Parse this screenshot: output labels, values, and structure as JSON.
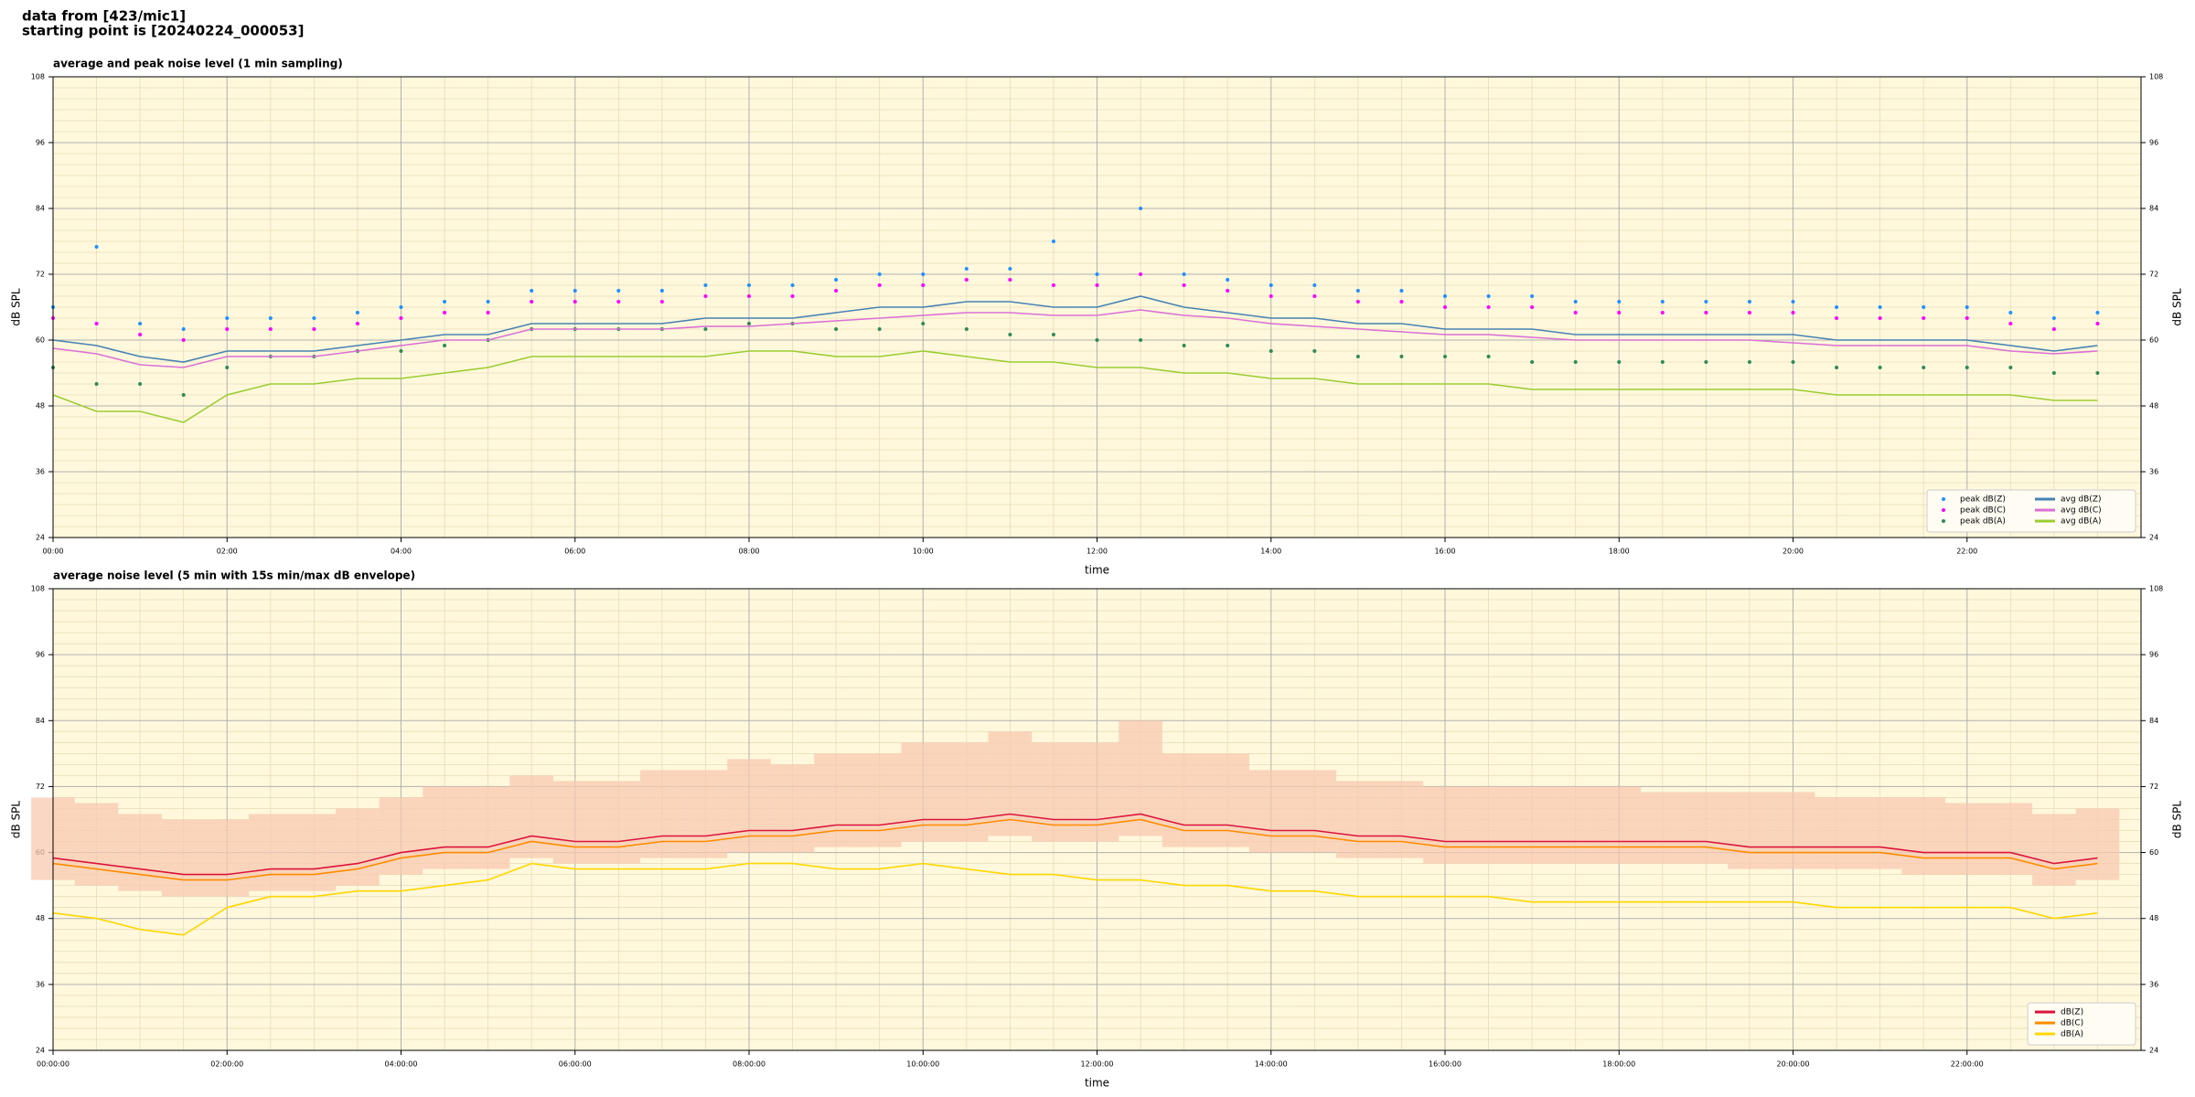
{
  "header": {
    "lines": [
      "data from [423/mic1]",
      "starting point is [20240224_000053]"
    ]
  },
  "chart_data": [
    {
      "type": "line",
      "title": "average and peak noise level (1 min sampling)",
      "xlabel": "time",
      "ylabel": "dB SPL",
      "xlim": [
        0,
        24
      ],
      "ylim": [
        24,
        108
      ],
      "yticks": [
        24,
        36,
        48,
        60,
        72,
        84,
        96,
        108
      ],
      "xticks": [
        {
          "value": 0,
          "label": "00:00"
        },
        {
          "value": 2,
          "label": "02:00"
        },
        {
          "value": 4,
          "label": "04:00"
        },
        {
          "value": 6,
          "label": "06:00"
        },
        {
          "value": 8,
          "label": "08:00"
        },
        {
          "value": 10,
          "label": "10:00"
        },
        {
          "value": 12,
          "label": "12:00"
        },
        {
          "value": 14,
          "label": "14:00"
        },
        {
          "value": 16,
          "label": "16:00"
        },
        {
          "value": 18,
          "label": "18:00"
        },
        {
          "value": 20,
          "label": "20:00"
        },
        {
          "value": 22,
          "label": "22:00"
        }
      ],
      "grid": true,
      "legend": "lower right",
      "background": "#fff8dc",
      "x": [
        0,
        0.5,
        1,
        1.5,
        2,
        2.5,
        3,
        3.5,
        4,
        4.5,
        5,
        5.5,
        6,
        6.5,
        7,
        7.5,
        8,
        8.5,
        9,
        9.5,
        10,
        10.5,
        11,
        11.5,
        12,
        12.5,
        13,
        13.5,
        14,
        14.5,
        15,
        15.5,
        16,
        16.5,
        17,
        17.5,
        18,
        18.5,
        19,
        19.5,
        20,
        20.5,
        21,
        21.5,
        22,
        22.5,
        23,
        23.5
      ],
      "series": [
        {
          "name": "peak dB(Z)",
          "style": "marker",
          "color": "#1e90ff",
          "values": [
            66,
            77,
            63,
            62,
            64,
            64,
            64,
            65,
            66,
            67,
            67,
            69,
            69,
            69,
            69,
            70,
            70,
            70,
            71,
            72,
            72,
            73,
            73,
            78,
            72,
            84,
            72,
            71,
            70,
            70,
            69,
            69,
            68,
            68,
            68,
            67,
            67,
            67,
            67,
            67,
            67,
            66,
            66,
            66,
            66,
            65,
            64,
            65
          ]
        },
        {
          "name": "peak dB(C)",
          "style": "marker",
          "color": "#ff00ff",
          "values": [
            64,
            63,
            61,
            60,
            62,
            62,
            62,
            63,
            64,
            65,
            65,
            67,
            67,
            67,
            67,
            68,
            68,
            68,
            69,
            70,
            70,
            71,
            71,
            70,
            70,
            72,
            70,
            69,
            68,
            68,
            67,
            67,
            66,
            66,
            66,
            65,
            65,
            65,
            65,
            65,
            65,
            64,
            64,
            64,
            64,
            63,
            62,
            63
          ]
        },
        {
          "name": "peak dB(A)",
          "style": "marker",
          "color": "#2e8b57",
          "values": [
            55,
            52,
            52,
            50,
            55,
            57,
            57,
            58,
            58,
            59,
            60,
            62,
            62,
            62,
            62,
            62,
            63,
            63,
            62,
            62,
            63,
            62,
            61,
            61,
            60,
            60,
            59,
            59,
            58,
            58,
            57,
            57,
            57,
            57,
            56,
            56,
            56,
            56,
            56,
            56,
            56,
            55,
            55,
            55,
            55,
            55,
            54,
            54
          ]
        },
        {
          "name": "avg dB(Z)",
          "style": "line",
          "color": "#4682b4",
          "values": [
            60,
            59,
            57,
            56,
            58,
            58,
            58,
            59,
            60,
            61,
            61,
            63,
            63,
            63,
            63,
            64,
            64,
            64,
            65,
            66,
            66,
            67,
            67,
            66,
            66,
            68,
            66,
            65,
            64,
            64,
            63,
            63,
            62,
            62,
            62,
            61,
            61,
            61,
            61,
            61,
            61,
            60,
            60,
            60,
            60,
            59,
            58,
            59
          ]
        },
        {
          "name": "avg dB(C)",
          "style": "line",
          "color": "#da70d6",
          "values": [
            58.5,
            57.5,
            55.5,
            55,
            57,
            57,
            57,
            58,
            59,
            60,
            60,
            62,
            62,
            62,
            62,
            62.5,
            62.5,
            63,
            63.5,
            64,
            64.5,
            65,
            65,
            64.5,
            64.5,
            65.5,
            64.5,
            64,
            63,
            62.5,
            62,
            61.5,
            61,
            61,
            60.5,
            60,
            60,
            60,
            60,
            60,
            59.5,
            59,
            59,
            59,
            59,
            58,
            57.5,
            58
          ]
        },
        {
          "name": "avg dB(A)",
          "style": "line",
          "color": "#9acd32",
          "values": [
            50,
            47,
            47,
            45,
            50,
            52,
            52,
            53,
            53,
            54,
            55,
            57,
            57,
            57,
            57,
            57,
            58,
            58,
            57,
            57,
            58,
            57,
            56,
            56,
            55,
            55,
            54,
            54,
            53,
            53,
            52,
            52,
            52,
            52,
            51,
            51,
            51,
            51,
            51,
            51,
            51,
            50,
            50,
            50,
            50,
            50,
            49,
            49
          ]
        }
      ]
    },
    {
      "type": "line",
      "title": "average noise level (5 min with 15s min/max dB envelope)",
      "xlabel": "time",
      "ylabel": "dB SPL",
      "xlim": [
        0,
        24
      ],
      "ylim": [
        24,
        108
      ],
      "yticks": [
        24,
        36,
        48,
        60,
        72,
        84,
        96,
        108
      ],
      "xticks": [
        {
          "value": 0,
          "label": "00:00:00"
        },
        {
          "value": 2,
          "label": "02:00:00"
        },
        {
          "value": 4,
          "label": "04:00:00"
        },
        {
          "value": 6,
          "label": "06:00:00"
        },
        {
          "value": 8,
          "label": "08:00:00"
        },
        {
          "value": 10,
          "label": "10:00:00"
        },
        {
          "value": 12,
          "label": "12:00:00"
        },
        {
          "value": 14,
          "label": "14:00:00"
        },
        {
          "value": 16,
          "label": "16:00:00"
        },
        {
          "value": 18,
          "label": "18:00:00"
        },
        {
          "value": 20,
          "label": "20:00:00"
        },
        {
          "value": 22,
          "label": "22:00:00"
        }
      ],
      "grid": true,
      "legend": "lower right",
      "background": "#fff8dc",
      "x": [
        0,
        0.5,
        1,
        1.5,
        2,
        2.5,
        3,
        3.5,
        4,
        4.5,
        5,
        5.5,
        6,
        6.5,
        7,
        7.5,
        8,
        8.5,
        9,
        9.5,
        10,
        10.5,
        11,
        11.5,
        12,
        12.5,
        13,
        13.5,
        14,
        14.5,
        15,
        15.5,
        16,
        16.5,
        17,
        17.5,
        18,
        18.5,
        19,
        19.5,
        20,
        20.5,
        21,
        21.5,
        22,
        22.5,
        23,
        23.5
      ],
      "envelope": {
        "color": "#f8c8b0",
        "low": [
          55,
          54,
          53,
          52,
          52,
          53,
          53,
          54,
          56,
          57,
          57,
          59,
          58,
          58,
          59,
          59,
          60,
          60,
          61,
          61,
          62,
          62,
          63,
          62,
          62,
          63,
          61,
          61,
          60,
          60,
          59,
          59,
          58,
          58,
          58,
          58,
          58,
          58,
          58,
          57,
          57,
          57,
          57,
          56,
          56,
          56,
          54,
          55
        ],
        "high": [
          70,
          69,
          67,
          66,
          66,
          67,
          67,
          68,
          70,
          72,
          72,
          74,
          73,
          73,
          75,
          75,
          77,
          76,
          78,
          78,
          80,
          80,
          82,
          80,
          80,
          84,
          78,
          78,
          75,
          75,
          73,
          73,
          72,
          72,
          72,
          72,
          72,
          71,
          71,
          71,
          71,
          70,
          70,
          70,
          69,
          69,
          67,
          68
        ]
      },
      "series": [
        {
          "name": "dB(Z)",
          "style": "line",
          "color": "#dc143c",
          "values": [
            59,
            58,
            57,
            56,
            56,
            57,
            57,
            58,
            60,
            61,
            61,
            63,
            62,
            62,
            63,
            63,
            64,
            64,
            65,
            65,
            66,
            66,
            67,
            66,
            66,
            67,
            65,
            65,
            64,
            64,
            63,
            63,
            62,
            62,
            62,
            62,
            62,
            62,
            62,
            61,
            61,
            61,
            61,
            60,
            60,
            60,
            58,
            59
          ]
        },
        {
          "name": "dB(C)",
          "style": "line",
          "color": "#ff8c00",
          "values": [
            58,
            57,
            56,
            55,
            55,
            56,
            56,
            57,
            59,
            60,
            60,
            62,
            61,
            61,
            62,
            62,
            63,
            63,
            64,
            64,
            65,
            65,
            66,
            65,
            65,
            66,
            64,
            64,
            63,
            63,
            62,
            62,
            61,
            61,
            61,
            61,
            61,
            61,
            61,
            60,
            60,
            60,
            60,
            59,
            59,
            59,
            57,
            58
          ]
        },
        {
          "name": "dB(A)",
          "style": "line",
          "color": "#ffd700",
          "values": [
            49,
            48,
            46,
            45,
            50,
            52,
            52,
            53,
            53,
            54,
            55,
            58,
            57,
            57,
            57,
            57,
            58,
            58,
            57,
            57,
            58,
            57,
            56,
            56,
            55,
            55,
            54,
            54,
            53,
            53,
            52,
            52,
            52,
            52,
            51,
            51,
            51,
            51,
            51,
            51,
            51,
            50,
            50,
            50,
            50,
            50,
            48,
            49
          ]
        }
      ]
    }
  ]
}
